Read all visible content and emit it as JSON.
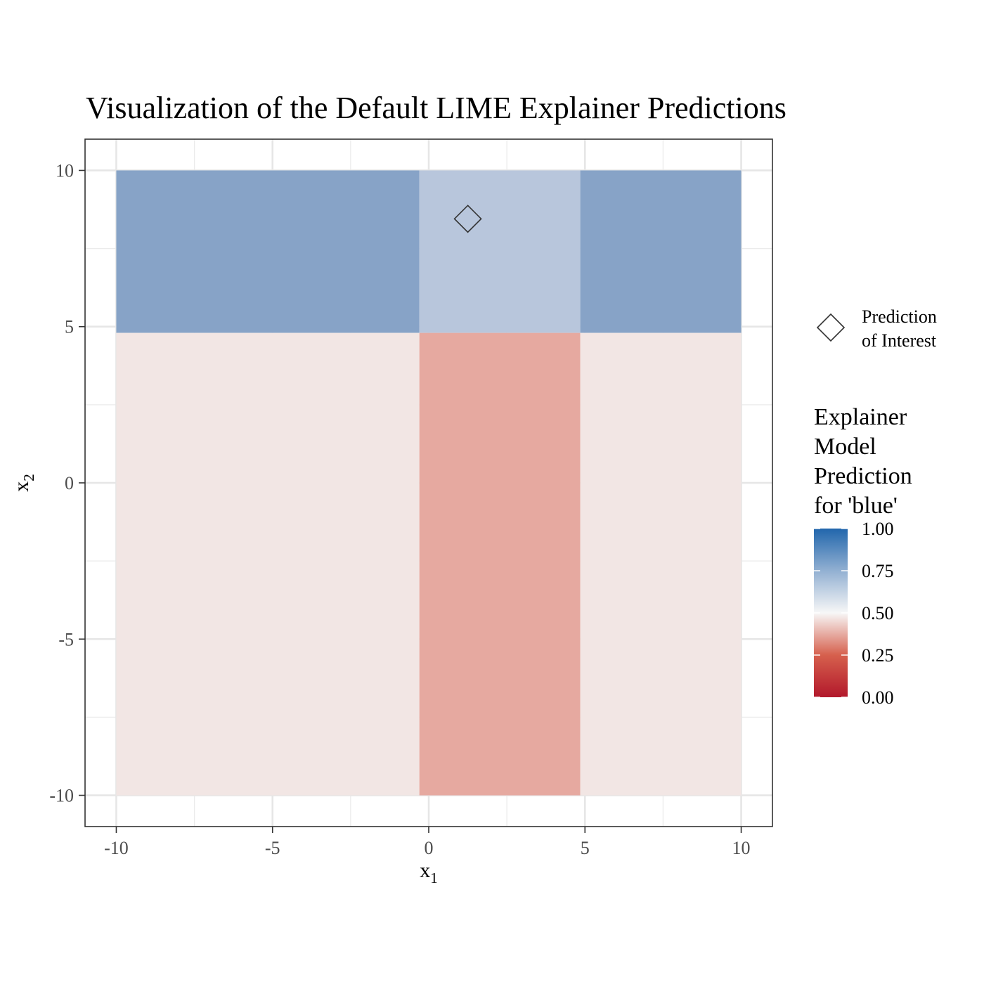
{
  "chart_data": {
    "type": "heatmap",
    "title": "Visualization of the Default LIME Explainer Predictions",
    "xlabel": {
      "base": "x",
      "sub": "1"
    },
    "ylabel": {
      "base": "x",
      "sub": "2"
    },
    "xlim": [
      -11,
      11
    ],
    "ylim": [
      -11,
      11
    ],
    "x_ticks": [
      -10,
      -5,
      0,
      5,
      10
    ],
    "y_ticks": [
      -10,
      -5,
      0,
      5,
      10
    ],
    "x_tick_labels": [
      "-10",
      "-5",
      "0",
      "5",
      "10"
    ],
    "y_tick_labels": [
      "-10",
      "-5",
      "0",
      "5",
      "10"
    ],
    "grid": true,
    "regions": [
      {
        "x": [
          -10,
          -0.3
        ],
        "y": [
          4.8,
          10
        ],
        "value": 0.66,
        "color": "#87a3c7"
      },
      {
        "x": [
          -0.3,
          4.85
        ],
        "y": [
          4.8,
          10
        ],
        "value": 0.59,
        "color": "#b8c6dc"
      },
      {
        "x": [
          4.85,
          10
        ],
        "y": [
          4.8,
          10
        ],
        "value": 0.66,
        "color": "#87a3c7"
      },
      {
        "x": [
          -10,
          -0.3
        ],
        "y": [
          -10,
          4.8
        ],
        "value": 0.46,
        "color": "#f2e6e4"
      },
      {
        "x": [
          -0.3,
          4.85
        ],
        "y": [
          -10,
          4.8
        ],
        "value": 0.34,
        "color": "#e6a9a0"
      },
      {
        "x": [
          4.85,
          10
        ],
        "y": [
          -10,
          4.8
        ],
        "value": 0.46,
        "color": "#f2e6e4"
      }
    ],
    "point_of_interest": {
      "x": 1.25,
      "y": 8.45
    },
    "legend_shape": {
      "label_lines": [
        "Prediction",
        "of Interest"
      ],
      "position": "right"
    },
    "colorbar": {
      "title_lines": [
        "Explainer",
        "Model",
        "Prediction",
        "for 'blue'"
      ],
      "range": [
        0,
        1
      ],
      "ticks": [
        1.0,
        0.75,
        0.5,
        0.25,
        0.0
      ],
      "tick_labels": [
        "1.00",
        "0.75",
        "0.50",
        "0.25",
        "0.00"
      ],
      "low_color": "#b2182b",
      "mid_color": "#f7f7f7",
      "high_color": "#2166ac",
      "position": "right"
    }
  }
}
